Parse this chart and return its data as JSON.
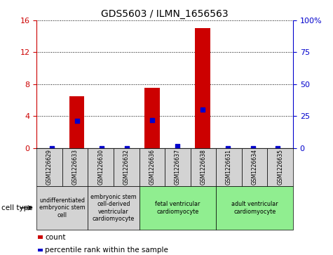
{
  "title": "GDS5603 / ILMN_1656563",
  "samples": [
    "GSM1226629",
    "GSM1226633",
    "GSM1226630",
    "GSM1226632",
    "GSM1226636",
    "GSM1226637",
    "GSM1226638",
    "GSM1226631",
    "GSM1226634",
    "GSM1226635"
  ],
  "counts": [
    0,
    6.5,
    0,
    0,
    7.5,
    0,
    15.0,
    0,
    0,
    0
  ],
  "percentile_ranks": [
    0,
    21,
    0,
    0,
    22,
    1.5,
    30,
    0,
    0,
    0
  ],
  "ylim_left": [
    0,
    16
  ],
  "ylim_right": [
    0,
    100
  ],
  "yticks_left": [
    0,
    4,
    8,
    12,
    16
  ],
  "yticks_right": [
    0,
    25,
    50,
    75,
    100
  ],
  "yticklabels_right": [
    "0",
    "25",
    "50",
    "75",
    "100%"
  ],
  "bar_color": "#cc0000",
  "dot_color": "#0000cc",
  "cell_type_groups": [
    {
      "label": "undifferentiated\nembryonic stem\ncell",
      "start": 0,
      "end": 2,
      "color": "#d3d3d3"
    },
    {
      "label": "embryonic stem\ncell-derived\nventricular\ncardiomyocyte",
      "start": 2,
      "end": 4,
      "color": "#d3d3d3"
    },
    {
      "label": "fetal ventricular\ncardiomyocyte",
      "start": 4,
      "end": 7,
      "color": "#90ee90"
    },
    {
      "label": "adult ventricular\ncardiomyocyte",
      "start": 7,
      "end": 10,
      "color": "#90ee90"
    }
  ],
  "legend_count_label": "count",
  "legend_pct_label": "percentile rank within the sample",
  "cell_type_label": "cell type",
  "left_axis_color": "#cc0000",
  "right_axis_color": "#0000cc",
  "bar_width": 0.6,
  "fig_width": 4.75,
  "fig_height": 3.63,
  "dpi": 100
}
